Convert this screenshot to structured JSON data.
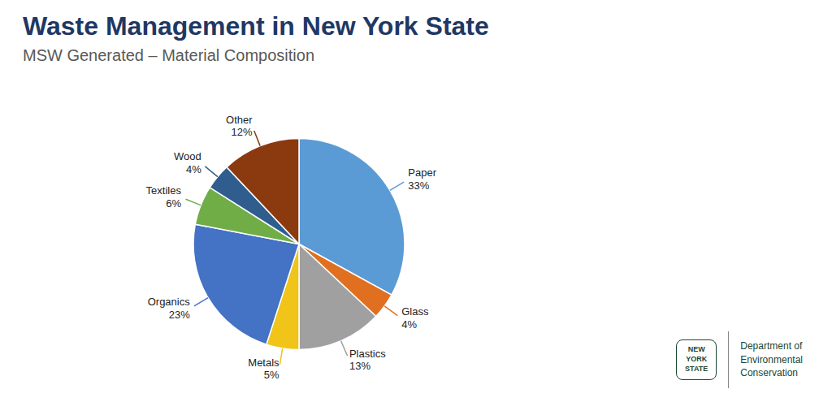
{
  "chart_data": {
    "type": "pie",
    "title": "Waste Management in New York State",
    "subtitle": "MSW Generated – Material Composition",
    "categories": [
      "Paper",
      "Glass",
      "Plastics",
      "Metals",
      "Organics",
      "Textiles",
      "Wood",
      "Other"
    ],
    "values": [
      33,
      4,
      13,
      5,
      23,
      6,
      4,
      12
    ],
    "value_labels": [
      "33%",
      "4%",
      "13%",
      "5%",
      "23%",
      "6%",
      "4%",
      "12%"
    ],
    "colors": [
      "#5B9BD5",
      "#E07020",
      "#A0A0A0",
      "#F0C419",
      "#4472C4",
      "#70AD47",
      "#2E5D8E",
      "#8B3A0F"
    ],
    "annotations": [
      "NEW\nYORK\nSTATE",
      "Department of\nEnvironmental\nConservation"
    ]
  }
}
